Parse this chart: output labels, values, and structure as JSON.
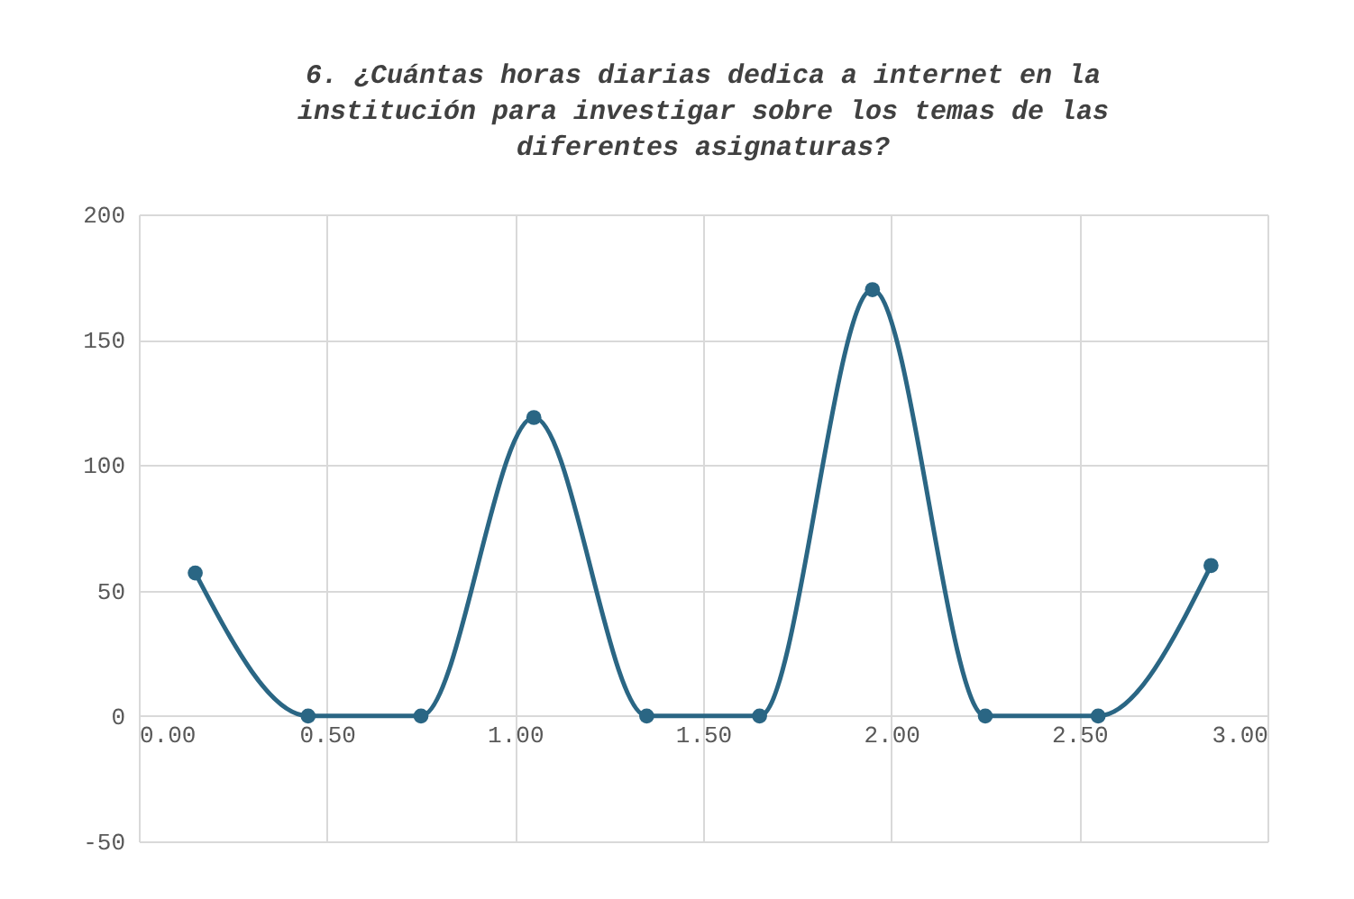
{
  "chart_data": {
    "type": "line",
    "title": "6. ¿Cuántas horas diarias dedica a internet en la institución para investigar sobre los temas de las diferentes asignaturas?",
    "x": [
      0.15,
      0.45,
      0.75,
      1.05,
      1.35,
      1.65,
      1.95,
      2.25,
      2.55,
      2.85
    ],
    "series": [
      {
        "color": "#2a6684",
        "values": [
          57,
          0,
          0,
          119,
          0,
          0,
          170,
          0,
          0,
          60
        ]
      }
    ],
    "xlim": [
      0,
      3
    ],
    "xticks": [
      {
        "value": 0,
        "label": "0.00"
      },
      {
        "value": 0.5,
        "label": "0.50"
      },
      {
        "value": 1,
        "label": "1.00"
      },
      {
        "value": 1.5,
        "label": "1.50"
      },
      {
        "value": 2,
        "label": "2.00"
      },
      {
        "value": 2.5,
        "label": "2.50"
      },
      {
        "value": 3,
        "label": "3.00"
      }
    ],
    "ylim": [
      -50,
      200
    ],
    "yticks": [
      -50,
      0,
      50,
      100,
      150,
      200
    ],
    "grid": true,
    "marker": "circle",
    "line_style": "solid"
  }
}
